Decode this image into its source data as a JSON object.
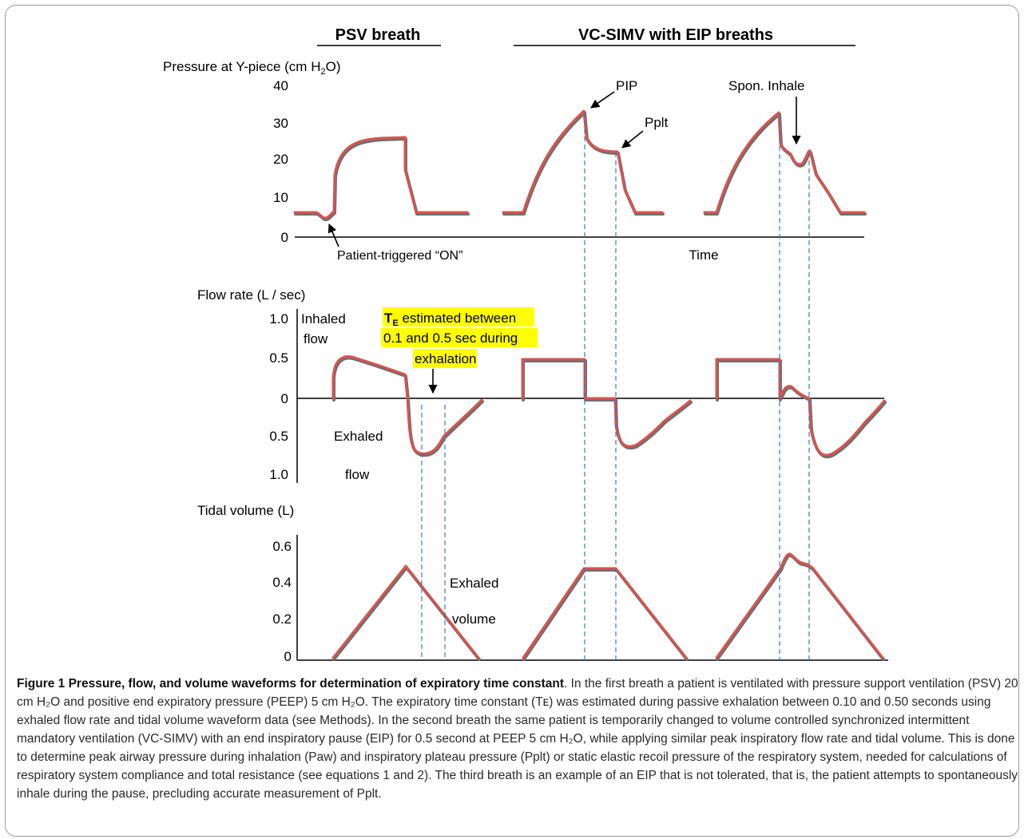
{
  "figure": {
    "headers": {
      "psv": "PSV breath",
      "vcsimv": "VC-SIMV with EIP breaths"
    },
    "colors": {
      "trace": "#d9534f",
      "trace_shadow": "#6f6f6f",
      "axis": "#000000",
      "guide": "#3a78c9",
      "highlight": "#ffff00"
    },
    "pressure_panel": {
      "label_main": "Pressure at Y-piece (cm H",
      "label_sub": "2",
      "label_end": "O)",
      "ticks": [
        "40",
        "30",
        "20",
        "10",
        "0"
      ],
      "x_label": "Time",
      "annotations": {
        "pip": "PIP",
        "pplt": "Pplt",
        "spon": "Spon.  Inhale",
        "trigger": "Patient-triggered “ON”"
      }
    },
    "flow_panel": {
      "label": "Flow rate (L / sec)",
      "ticks": [
        "1.0",
        "0.5",
        "0",
        "0.5",
        "1.0"
      ],
      "inhaled_1": "Inhaled",
      "inhaled_2": "flow",
      "exhaled_1": "Exhaled",
      "exhaled_2": "flow",
      "te_symbol": "T",
      "te_sub": "E",
      "te_line1": " estimated between",
      "te_line2": "0.1 and 0.5 sec  during",
      "te_line3": "exhalation"
    },
    "volume_panel": {
      "label": "Tidal volume (L)",
      "ticks": [
        "0.6",
        "0.4",
        "0.2",
        "0"
      ],
      "exhaled_1": "Exhaled",
      "exhaled_2": "volume"
    }
  },
  "caption": {
    "title": "Figure 1 Pressure, flow, and volume waveforms for determination of expiratory time constant",
    "body": ". In the first breath a patient is ventilated with pressure support ventilation (PSV) 20 cm H₂O and positive end expiratory pressure (PEEP) 5 cm H₂O. The expiratory time constant (Tᴇ) was estimated during passive exhalation between 0.10 and 0.50 seconds using exhaled flow rate and tidal volume waveform data (see Methods). In the second breath the same patient is temporarily changed to volume controlled synchronized intermittent mandatory ventilation (VC-SIMV) with an end inspiratory pause (EIP) for 0.5 second at PEEP 5 cm H₂O, while applying similar peak inspiratory flow rate and tidal volume. This is done to determine peak airway pressure during inhalation (Paw) and inspiratory plateau pressure (Pplt) or static elastic recoil pressure of the respiratory system, needed for calculations of respiratory system compliance and total resistance (see equations 1 and 2). The third breath is an example of an EIP that is not tolerated, that is, the patient attempts to spontaneously inhale during the pause, precluding accurate measurement of Pplt."
  }
}
